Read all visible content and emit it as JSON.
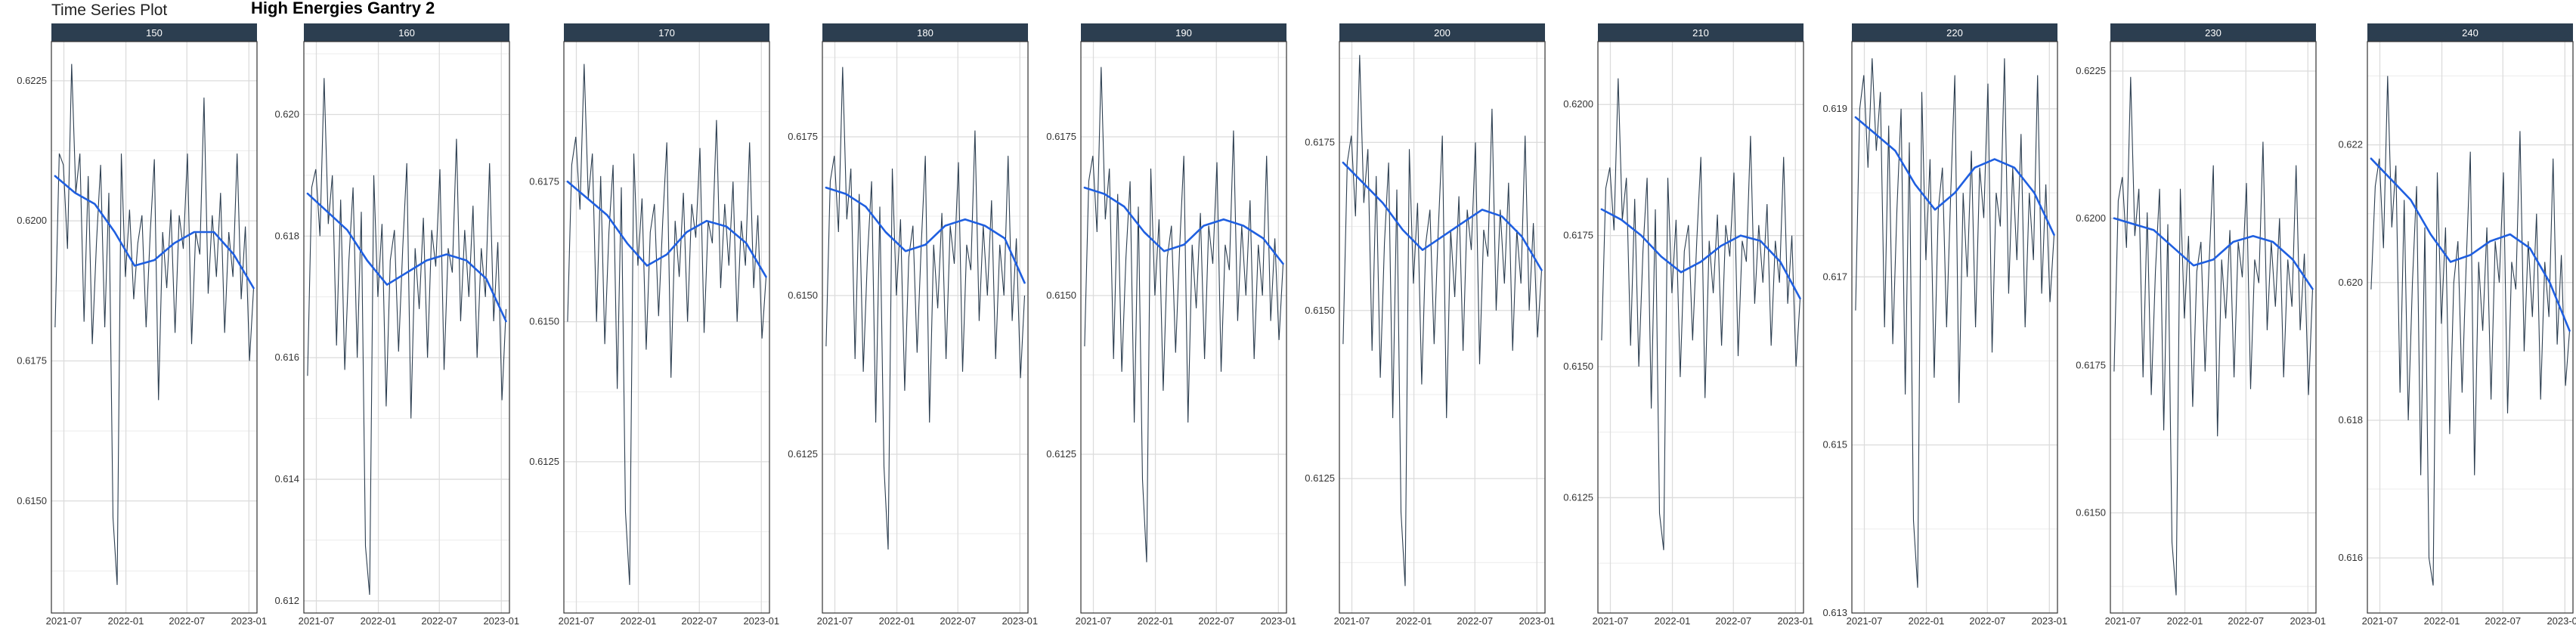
{
  "page": {
    "title": "Time Series Plot",
    "heading": "High Energies Gantry 2"
  },
  "colors": {
    "strip_background": "#2c3e50",
    "strip_text": "#ffffff",
    "raw_line": "#2c3e50",
    "smooth_line": "#1f5fe0",
    "grid": "#dcdcdc",
    "panel_border": "#333333"
  },
  "chart_data": {
    "type": "line",
    "facet_by": "energy",
    "x_ticks": [
      "2021-07",
      "2022-01",
      "2022-07",
      "2023-01"
    ],
    "x_range": [
      "2021-05-25",
      "2023-01-25"
    ],
    "grid": true,
    "panels": [
      {
        "label": "150",
        "ylim": [
          0.613,
          0.6232
        ],
        "y_ticks": [
          0.615,
          0.6175,
          0.62,
          0.6225
        ],
        "y_tick_labels": [
          "0.6150",
          "0.6175",
          "0.6200",
          "0.6225"
        ],
        "smooth": [
          [
            0.0,
            0.6208
          ],
          [
            0.1,
            0.6205
          ],
          [
            0.2,
            0.6203
          ],
          [
            0.3,
            0.6198
          ],
          [
            0.4,
            0.6192
          ],
          [
            0.5,
            0.6193
          ],
          [
            0.6,
            0.6196
          ],
          [
            0.7,
            0.6198
          ],
          [
            0.8,
            0.6198
          ],
          [
            0.9,
            0.6194
          ],
          [
            1.0,
            0.6188
          ]
        ],
        "raw_values": [
          0.6181,
          0.6212,
          0.621,
          0.6195,
          0.6228,
          0.6205,
          0.6212,
          0.6182,
          0.6208,
          0.6178,
          0.6196,
          0.621,
          0.6181,
          0.6205,
          0.6147,
          0.6135,
          0.6212,
          0.619,
          0.6202,
          0.6186,
          0.6196,
          0.6201,
          0.6181,
          0.6198,
          0.6211,
          0.6168,
          0.6198,
          0.6188,
          0.6202,
          0.618,
          0.6201,
          0.6195,
          0.6212,
          0.6178,
          0.6198,
          0.6194,
          0.6222,
          0.6187,
          0.6201,
          0.619,
          0.6205,
          0.618,
          0.6198,
          0.619,
          0.6212,
          0.6186,
          0.6199,
          0.6175,
          0.6188
        ]
      },
      {
        "label": "160",
        "ylim": [
          0.6118,
          0.6212
        ],
        "y_ticks": [
          0.612,
          0.614,
          0.616,
          0.618,
          0.62
        ],
        "y_tick_labels": [
          "0.612",
          "0.614",
          "0.616",
          "0.618",
          "0.620"
        ],
        "smooth": [
          [
            0.0,
            0.6187
          ],
          [
            0.1,
            0.6184
          ],
          [
            0.2,
            0.6181
          ],
          [
            0.3,
            0.6176
          ],
          [
            0.4,
            0.6172
          ],
          [
            0.5,
            0.6174
          ],
          [
            0.6,
            0.6176
          ],
          [
            0.7,
            0.6177
          ],
          [
            0.8,
            0.6176
          ],
          [
            0.9,
            0.6173
          ],
          [
            1.0,
            0.6166
          ]
        ],
        "raw_values": [
          0.6157,
          0.6188,
          0.6191,
          0.618,
          0.6206,
          0.6182,
          0.619,
          0.6162,
          0.6186,
          0.6158,
          0.6176,
          0.6188,
          0.616,
          0.6184,
          0.6129,
          0.6121,
          0.619,
          0.617,
          0.6182,
          0.6152,
          0.6176,
          0.6181,
          0.6161,
          0.6178,
          0.6192,
          0.615,
          0.6178,
          0.6168,
          0.6183,
          0.616,
          0.6181,
          0.6175,
          0.6191,
          0.6158,
          0.6178,
          0.6174,
          0.6196,
          0.6166,
          0.6181,
          0.617,
          0.6185,
          0.616,
          0.6178,
          0.617,
          0.6192,
          0.6166,
          0.6179,
          0.6153,
          0.6168
        ]
      },
      {
        "label": "170",
        "ylim": [
          0.6098,
          0.62
        ],
        "y_ticks": [
          0.6125,
          0.615,
          0.6175
        ],
        "y_tick_labels": [
          "0.6125",
          "0.6150",
          "0.6175"
        ],
        "smooth": [
          [
            0.0,
            0.6175
          ],
          [
            0.1,
            0.6172
          ],
          [
            0.2,
            0.6169
          ],
          [
            0.3,
            0.6164
          ],
          [
            0.4,
            0.616
          ],
          [
            0.5,
            0.6162
          ],
          [
            0.6,
            0.6166
          ],
          [
            0.7,
            0.6168
          ],
          [
            0.8,
            0.6167
          ],
          [
            0.9,
            0.6164
          ],
          [
            1.0,
            0.6158
          ]
        ],
        "raw_values": [
          0.615,
          0.6178,
          0.6183,
          0.617,
          0.6196,
          0.6172,
          0.618,
          0.615,
          0.6176,
          0.6146,
          0.6166,
          0.6178,
          0.6138,
          0.6174,
          0.6116,
          0.6103,
          0.618,
          0.616,
          0.6172,
          0.6145,
          0.6166,
          0.6171,
          0.6151,
          0.6168,
          0.6182,
          0.614,
          0.6168,
          0.6158,
          0.6173,
          0.615,
          0.6171,
          0.6165,
          0.6181,
          0.6148,
          0.6168,
          0.6164,
          0.6186,
          0.6156,
          0.6171,
          0.616,
          0.6175,
          0.615,
          0.6168,
          0.616,
          0.6182,
          0.6156,
          0.6169,
          0.6147,
          0.6158
        ]
      },
      {
        "label": "180",
        "ylim": [
          0.61,
          0.619
        ],
        "y_ticks": [
          0.6125,
          0.615,
          0.6175
        ],
        "y_tick_labels": [
          "0.6125",
          "0.6150",
          "0.6175"
        ],
        "smooth": [
          [
            0.0,
            0.6167
          ],
          [
            0.1,
            0.6166
          ],
          [
            0.2,
            0.6164
          ],
          [
            0.3,
            0.616
          ],
          [
            0.4,
            0.6157
          ],
          [
            0.5,
            0.6158
          ],
          [
            0.6,
            0.6161
          ],
          [
            0.7,
            0.6162
          ],
          [
            0.8,
            0.6161
          ],
          [
            0.9,
            0.6159
          ],
          [
            1.0,
            0.6152
          ]
        ],
        "raw_values": [
          0.6142,
          0.6168,
          0.6172,
          0.616,
          0.6186,
          0.6162,
          0.617,
          0.614,
          0.6166,
          0.6138,
          0.6156,
          0.6168,
          0.613,
          0.6164,
          0.6123,
          0.611,
          0.617,
          0.615,
          0.6162,
          0.6135,
          0.6156,
          0.6161,
          0.6141,
          0.6158,
          0.6172,
          0.613,
          0.6158,
          0.6148,
          0.6163,
          0.614,
          0.6161,
          0.6155,
          0.6171,
          0.6138,
          0.6158,
          0.6154,
          0.6176,
          0.6146,
          0.6161,
          0.615,
          0.6165,
          0.614,
          0.6158,
          0.615,
          0.6172,
          0.6146,
          0.6159,
          0.6137,
          0.615
        ]
      },
      {
        "label": "190",
        "ylim": [
          0.61,
          0.619
        ],
        "y_ticks": [
          0.6125,
          0.615,
          0.6175
        ],
        "y_tick_labels": [
          "0.6125",
          "0.6150",
          "0.6175"
        ],
        "smooth": [
          [
            0.0,
            0.6167
          ],
          [
            0.1,
            0.6166
          ],
          [
            0.2,
            0.6164
          ],
          [
            0.3,
            0.616
          ],
          [
            0.4,
            0.6157
          ],
          [
            0.5,
            0.6158
          ],
          [
            0.6,
            0.6161
          ],
          [
            0.7,
            0.6162
          ],
          [
            0.8,
            0.6161
          ],
          [
            0.9,
            0.6159
          ],
          [
            1.0,
            0.6155
          ]
        ],
        "raw_values": [
          0.6142,
          0.6168,
          0.6172,
          0.616,
          0.6186,
          0.6162,
          0.617,
          0.614,
          0.6166,
          0.6138,
          0.6156,
          0.6168,
          0.613,
          0.6164,
          0.6121,
          0.6108,
          0.617,
          0.615,
          0.6162,
          0.6135,
          0.6156,
          0.6161,
          0.6141,
          0.6158,
          0.6172,
          0.613,
          0.6158,
          0.6148,
          0.6163,
          0.614,
          0.6161,
          0.6155,
          0.6171,
          0.6138,
          0.6158,
          0.6154,
          0.6176,
          0.6146,
          0.6161,
          0.615,
          0.6165,
          0.614,
          0.6158,
          0.615,
          0.6172,
          0.6146,
          0.6159,
          0.6143,
          0.6155
        ]
      },
      {
        "label": "200",
        "ylim": [
          0.6105,
          0.619
        ],
        "y_ticks": [
          0.6125,
          0.615,
          0.6175
        ],
        "y_tick_labels": [
          "0.6125",
          "0.6150",
          "0.6175"
        ],
        "smooth": [
          [
            0.0,
            0.6172
          ],
          [
            0.1,
            0.6169
          ],
          [
            0.2,
            0.6166
          ],
          [
            0.3,
            0.6162
          ],
          [
            0.4,
            0.6159
          ],
          [
            0.5,
            0.6161
          ],
          [
            0.6,
            0.6163
          ],
          [
            0.7,
            0.6165
          ],
          [
            0.8,
            0.6164
          ],
          [
            0.9,
            0.6161
          ],
          [
            1.0,
            0.6156
          ]
        ],
        "raw_values": [
          0.6145,
          0.6172,
          0.6176,
          0.6164,
          0.6188,
          0.6166,
          0.6174,
          0.6144,
          0.617,
          0.614,
          0.616,
          0.6172,
          0.6134,
          0.6168,
          0.612,
          0.6109,
          0.6174,
          0.6154,
          0.6166,
          0.6139,
          0.616,
          0.6165,
          0.6145,
          0.6162,
          0.6176,
          0.6134,
          0.6162,
          0.6152,
          0.6167,
          0.6144,
          0.6165,
          0.6159,
          0.6175,
          0.6142,
          0.6162,
          0.6158,
          0.618,
          0.615,
          0.6165,
          0.6154,
          0.6169,
          0.6144,
          0.6162,
          0.6154,
          0.6176,
          0.615,
          0.6163,
          0.6146,
          0.6156
        ]
      },
      {
        "label": "210",
        "ylim": [
          0.6103,
          0.6212
        ],
        "y_ticks": [
          0.6125,
          0.615,
          0.6175,
          0.62
        ],
        "y_tick_labels": [
          "0.6125",
          "0.6150",
          "0.6175",
          "0.6200"
        ],
        "smooth": [
          [
            0.0,
            0.618
          ],
          [
            0.1,
            0.6178
          ],
          [
            0.2,
            0.6175
          ],
          [
            0.3,
            0.6171
          ],
          [
            0.4,
            0.6168
          ],
          [
            0.5,
            0.617
          ],
          [
            0.6,
            0.6173
          ],
          [
            0.7,
            0.6175
          ],
          [
            0.8,
            0.6174
          ],
          [
            0.9,
            0.617
          ],
          [
            1.0,
            0.6163
          ]
        ],
        "raw_values": [
          0.6155,
          0.6184,
          0.6188,
          0.6176,
          0.6205,
          0.6178,
          0.6186,
          0.6154,
          0.6182,
          0.615,
          0.6172,
          0.6186,
          0.6142,
          0.618,
          0.6122,
          0.6115,
          0.6186,
          0.6164,
          0.6178,
          0.6148,
          0.6172,
          0.6177,
          0.6155,
          0.6174,
          0.619,
          0.6144,
          0.6174,
          0.6164,
          0.6179,
          0.6154,
          0.6177,
          0.6171,
          0.6187,
          0.6152,
          0.6174,
          0.617,
          0.6194,
          0.6162,
          0.6177,
          0.6166,
          0.6181,
          0.6154,
          0.6174,
          0.6166,
          0.619,
          0.6162,
          0.6175,
          0.615,
          0.6163
        ]
      },
      {
        "label": "220",
        "ylim": [
          0.613,
          0.6198
        ],
        "y_ticks": [
          0.613,
          0.615,
          0.617,
          0.619
        ],
        "y_tick_labels": [
          "0.613",
          "0.615",
          "0.617",
          "0.619"
        ],
        "smooth": [
          [
            0.0,
            0.6189
          ],
          [
            0.1,
            0.6187
          ],
          [
            0.2,
            0.6185
          ],
          [
            0.3,
            0.6181
          ],
          [
            0.4,
            0.6178
          ],
          [
            0.5,
            0.618
          ],
          [
            0.6,
            0.6183
          ],
          [
            0.7,
            0.6184
          ],
          [
            0.8,
            0.6183
          ],
          [
            0.9,
            0.618
          ],
          [
            1.0,
            0.6175
          ]
        ],
        "raw_values": [
          0.6166,
          0.619,
          0.6194,
          0.6183,
          0.6196,
          0.6185,
          0.6192,
          0.6164,
          0.6188,
          0.6162,
          0.6178,
          0.619,
          0.6156,
          0.6186,
          0.6141,
          0.6133,
          0.6192,
          0.6172,
          0.6184,
          0.6158,
          0.6178,
          0.6183,
          0.6164,
          0.618,
          0.6194,
          0.6155,
          0.618,
          0.617,
          0.6185,
          0.6164,
          0.6183,
          0.6177,
          0.6193,
          0.6161,
          0.618,
          0.6176,
          0.6196,
          0.6168,
          0.6183,
          0.6172,
          0.6187,
          0.6164,
          0.618,
          0.6172,
          0.6194,
          0.6168,
          0.6181,
          0.6167,
          0.6175
        ]
      },
      {
        "label": "230",
        "ylim": [
          0.6133,
          0.623
        ],
        "y_ticks": [
          0.615,
          0.6175,
          0.62,
          0.6225
        ],
        "y_tick_labels": [
          "0.6150",
          "0.6175",
          "0.6200",
          "0.6225"
        ],
        "smooth": [
          [
            0.0,
            0.62
          ],
          [
            0.1,
            0.6199
          ],
          [
            0.2,
            0.6198
          ],
          [
            0.3,
            0.6195
          ],
          [
            0.4,
            0.6192
          ],
          [
            0.5,
            0.6193
          ],
          [
            0.6,
            0.6196
          ],
          [
            0.7,
            0.6197
          ],
          [
            0.8,
            0.6196
          ],
          [
            0.9,
            0.6193
          ],
          [
            1.0,
            0.6188
          ]
        ],
        "raw_values": [
          0.6174,
          0.6203,
          0.6207,
          0.6195,
          0.6224,
          0.6197,
          0.6205,
          0.6173,
          0.6201,
          0.617,
          0.6191,
          0.6205,
          0.6164,
          0.6199,
          0.6145,
          0.6136,
          0.6205,
          0.6183,
          0.6197,
          0.6168,
          0.6191,
          0.6196,
          0.6174,
          0.6193,
          0.6209,
          0.6163,
          0.6193,
          0.6183,
          0.6198,
          0.6173,
          0.6196,
          0.619,
          0.6206,
          0.6171,
          0.6193,
          0.6189,
          0.6213,
          0.6181,
          0.6196,
          0.6185,
          0.62,
          0.6173,
          0.6193,
          0.6185,
          0.6209,
          0.6181,
          0.6194,
          0.617,
          0.6188
        ]
      },
      {
        "label": "240",
        "ylim": [
          0.6152,
          0.6235
        ],
        "y_ticks": [
          0.616,
          0.618,
          0.62,
          0.622
        ],
        "y_tick_labels": [
          "0.616",
          "0.618",
          "0.620",
          "0.622"
        ],
        "smooth": [
          [
            0.0,
            0.6218
          ],
          [
            0.1,
            0.6215
          ],
          [
            0.2,
            0.6212
          ],
          [
            0.3,
            0.6207
          ],
          [
            0.4,
            0.6203
          ],
          [
            0.5,
            0.6204
          ],
          [
            0.6,
            0.6206
          ],
          [
            0.7,
            0.6207
          ],
          [
            0.8,
            0.6205
          ],
          [
            0.9,
            0.62
          ],
          [
            1.0,
            0.6193
          ]
        ],
        "raw_values": [
          0.6199,
          0.6214,
          0.6218,
          0.6205,
          0.623,
          0.6208,
          0.6217,
          0.6184,
          0.6212,
          0.618,
          0.62,
          0.6214,
          0.6172,
          0.6208,
          0.616,
          0.6156,
          0.6216,
          0.6194,
          0.6208,
          0.6178,
          0.62,
          0.6206,
          0.6184,
          0.6203,
          0.6219,
          0.6172,
          0.6203,
          0.6193,
          0.6208,
          0.6183,
          0.6206,
          0.62,
          0.6216,
          0.6181,
          0.6203,
          0.6199,
          0.6222,
          0.619,
          0.6206,
          0.6195,
          0.621,
          0.6183,
          0.6203,
          0.6195,
          0.6218,
          0.6191,
          0.6204,
          0.6185,
          0.6193
        ]
      }
    ]
  }
}
